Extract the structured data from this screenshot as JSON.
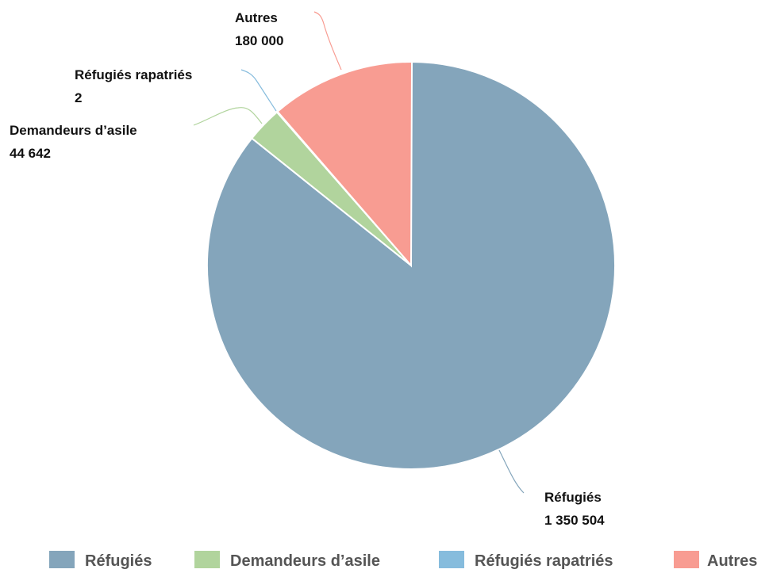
{
  "chart_data": {
    "type": "pie",
    "slices": [
      {
        "label": "Réfugiés",
        "value": 1350504,
        "display": "1 350 504",
        "color": "#84a5bb"
      },
      {
        "label": "Demandeurs d’asile",
        "value": 44642,
        "display": "44 642",
        "color": "#b1d49d"
      },
      {
        "label": "Réfugiés rapatriés",
        "value": 2,
        "display": "2",
        "color": "#86bcdd"
      },
      {
        "label": "Autres",
        "value": 180000,
        "display": "180 000",
        "color": "#f89c92"
      }
    ],
    "legend_position": "bottom",
    "start_angle": "12 o'clock",
    "direction": "clockwise"
  }
}
